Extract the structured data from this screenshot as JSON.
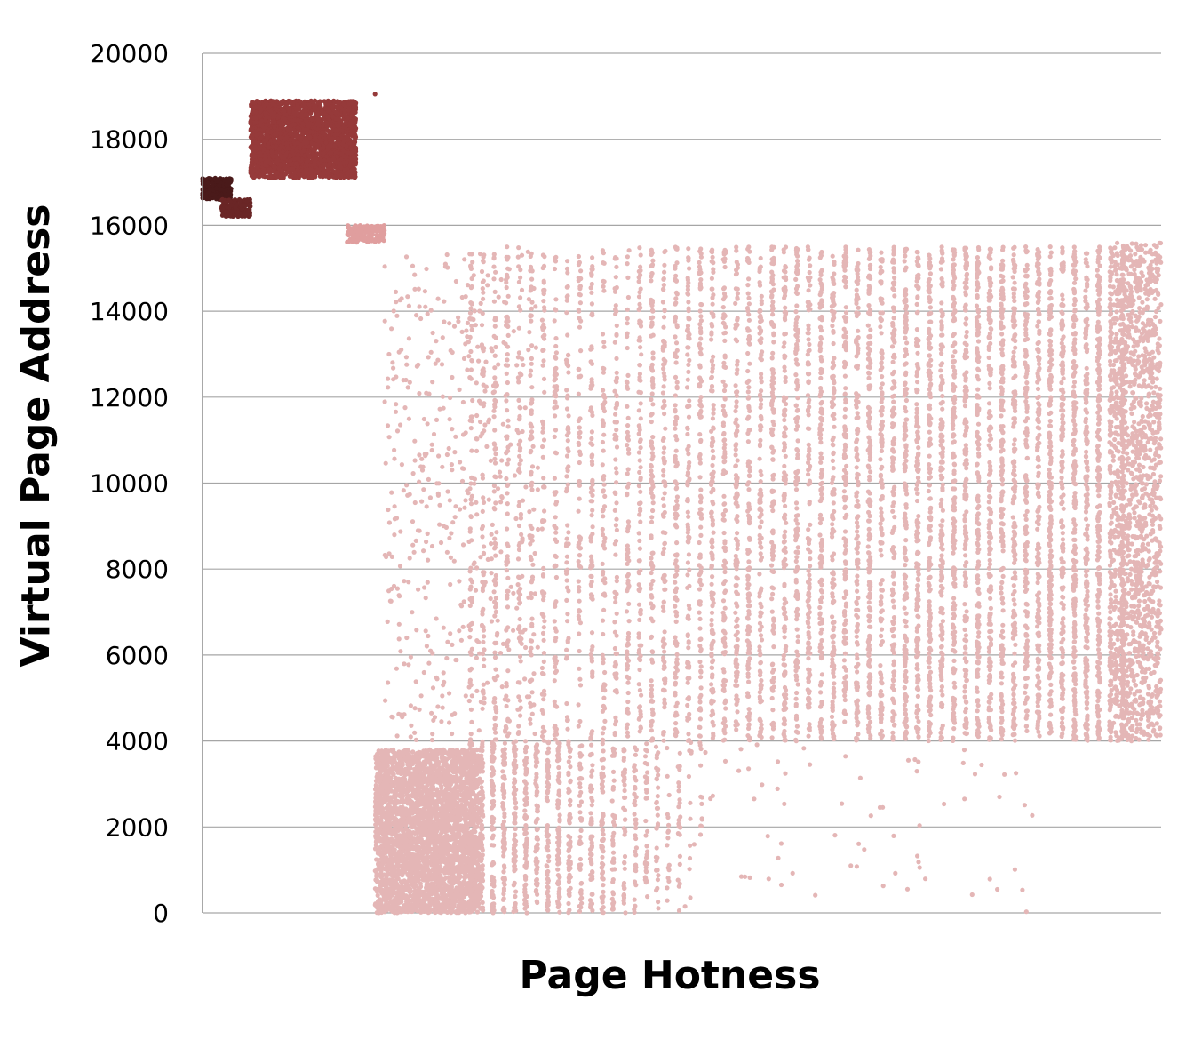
{
  "chart_data": {
    "type": "scatter",
    "title": "",
    "xlabel": "Page Hotness",
    "ylabel": "Virtual Page Address",
    "xlim": [
      0,
      100
    ],
    "ylim": [
      0,
      20000
    ],
    "x_ticks_visible": false,
    "y_ticks": [
      "0",
      "2000",
      "4000",
      "6000",
      "8000",
      "10000",
      "12000",
      "14000",
      "16000",
      "18000",
      "20000"
    ],
    "grid": "horizontal",
    "legend": "none",
    "clusters": [
      {
        "shape": "dense",
        "color": "#963a3a",
        "x": [
          5,
          16
        ],
        "y": [
          17100,
          18900
        ],
        "count": 2600
      },
      {
        "shape": "dense",
        "color": "#4a1a1a",
        "x": [
          0,
          3
        ],
        "y": [
          16600,
          17100
        ],
        "count": 260
      },
      {
        "shape": "dense",
        "color": "#6a2626",
        "x": [
          2,
          5
        ],
        "y": [
          16200,
          16600
        ],
        "count": 180
      },
      {
        "shape": "dense",
        "color": "#e09e9e",
        "x": [
          15,
          19
        ],
        "y": [
          15600,
          16000
        ],
        "count": 160
      },
      {
        "shape": "dense",
        "color": "#e4b6b6",
        "x": [
          18,
          29
        ],
        "y": [
          0,
          3800
        ],
        "count": 3400
      },
      {
        "shape": "columns",
        "color": "#e4b6b6",
        "x": [
          28,
          96
        ],
        "y": [
          4000,
          15500
        ],
        "columns": 55,
        "density": [
          0.25,
          1.0
        ],
        "count": 12000
      },
      {
        "shape": "columns",
        "color": "#e4b6b6",
        "x": [
          28,
          52
        ],
        "y": [
          0,
          4000
        ],
        "columns": 22,
        "density": [
          0.9,
          0.08
        ],
        "count": 2400
      },
      {
        "shape": "dense",
        "color": "#e4b6b6",
        "x": [
          95,
          100
        ],
        "y": [
          4000,
          15600
        ],
        "count": 1400
      },
      {
        "shape": "sparse",
        "color": "#e4b6b6",
        "x": [
          19,
          35
        ],
        "y": [
          4000,
          15400
        ],
        "count": 500
      },
      {
        "shape": "sparse",
        "color": "#e4b6b6",
        "x": [
          50,
          88
        ],
        "y": [
          0,
          4000
        ],
        "count": 70
      }
    ],
    "outliers": [
      {
        "color": "#963a3a",
        "x": 18,
        "y": 19050
      }
    ]
  }
}
